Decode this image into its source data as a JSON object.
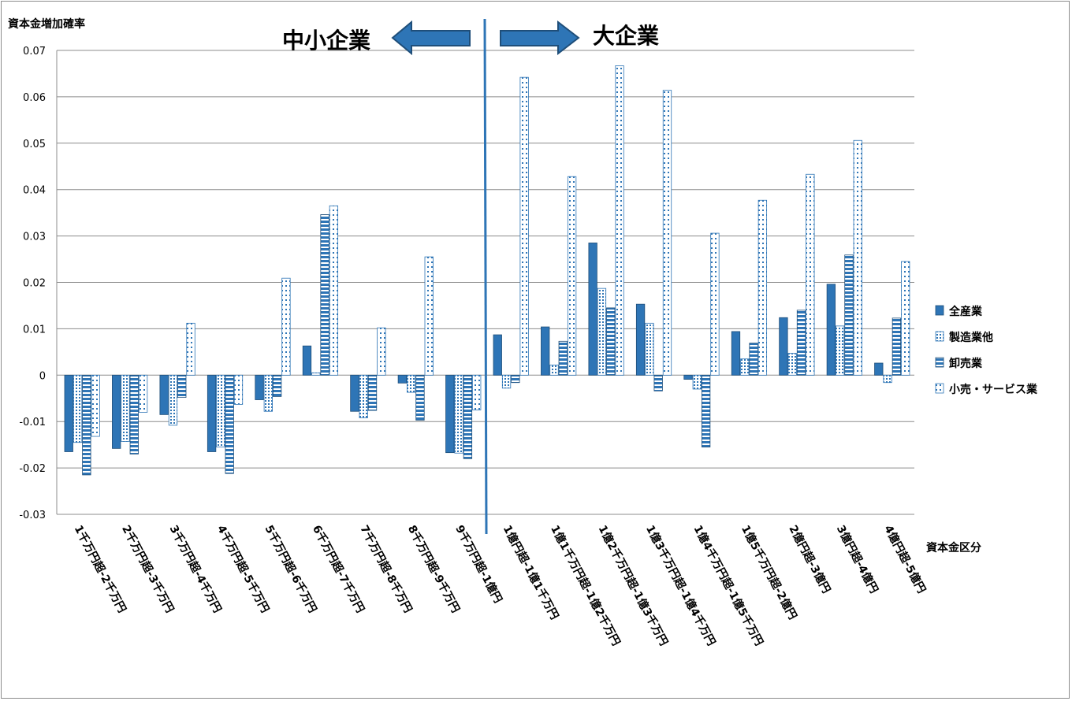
{
  "chart_data": {
    "type": "bar",
    "ylabel": "資本金増加確率",
    "xlabel": "資本金区分",
    "ylim": [
      -0.03,
      0.07
    ],
    "yticks": [
      "0.07",
      "0.06",
      "0.05",
      "0.04",
      "0.03",
      "0.02",
      "0.01",
      "0",
      "-0.01",
      "-0.02",
      "-0.03"
    ],
    "grid": true,
    "legend_position": "right",
    "annotations": {
      "left": "中小企業",
      "right": "大企業"
    },
    "categories": [
      "1千万円超-2千万円",
      "2千万円超-3千万円",
      "3千万円超-4千万円",
      "4千万円超-5千万円",
      "5千万円超-6千万円",
      "6千万円超-7千万円",
      "7千万円超-8千万円",
      "8千万円超-9千万円",
      "9千万円超-1億円",
      "1億円超-1億1千万円",
      "1億1千万円超-1億2千万円",
      "1億2千万円超-1億3千万円",
      "1億3千万円超-1億4千万円",
      "1億4千万円超-1億5千万円",
      "1億5千万円超-2億円",
      "2億円超-3億円",
      "3億円超-4億円",
      "4億円超-5億円"
    ],
    "series": [
      {
        "name": "全産業",
        "color": "#2e75b6",
        "pattern": "solid",
        "values": [
          -0.0165,
          -0.0158,
          -0.0085,
          -0.0165,
          -0.0053,
          0.0063,
          -0.0078,
          -0.0017,
          -0.0167,
          0.0087,
          0.0104,
          0.0285,
          0.0153,
          -0.0009,
          0.0094,
          0.0124,
          0.0196,
          0.0026
        ]
      },
      {
        "name": "製造業他",
        "color": "#2e75b6",
        "pattern": "dots",
        "values": [
          -0.0145,
          -0.0143,
          -0.0108,
          -0.0155,
          -0.0078,
          0.0005,
          -0.0092,
          -0.0037,
          -0.0168,
          -0.0028,
          0.0022,
          0.0187,
          0.0112,
          -0.003,
          0.0035,
          0.0047,
          0.0106,
          -0.0016
        ]
      },
      {
        "name": "卸売業",
        "color": "#2e75b6",
        "pattern": "hstripes",
        "values": [
          -0.0215,
          -0.017,
          -0.0048,
          -0.0212,
          -0.0046,
          0.0346,
          -0.0076,
          -0.0097,
          -0.018,
          -0.0016,
          0.0073,
          0.0145,
          -0.0034,
          -0.0155,
          0.0069,
          0.014,
          0.0259,
          0.0123
        ]
      },
      {
        "name": "小売・サービス業",
        "color": "#2e75b6",
        "pattern": "sparse",
        "values": [
          -0.0132,
          -0.008,
          0.0112,
          -0.0063,
          0.0209,
          0.0365,
          0.0102,
          0.0255,
          -0.0075,
          0.0642,
          0.0428,
          0.0667,
          0.0614,
          0.0306,
          0.0377,
          0.0433,
          0.0506,
          0.0245
        ]
      }
    ]
  }
}
